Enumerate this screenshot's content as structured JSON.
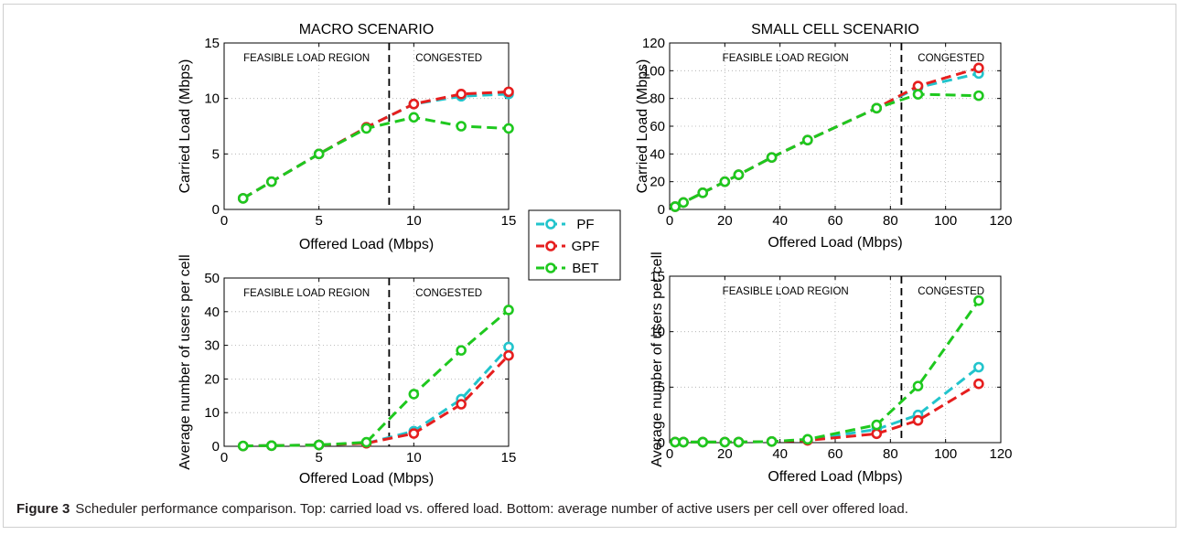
{
  "colors": {
    "pf": "#22c4cc",
    "gpf": "#e61e1e",
    "bet": "#1ec81e",
    "axis": "#000000",
    "grid": "#aaaaaa"
  },
  "legend": {
    "placement": "center",
    "entries": [
      "PF",
      "GPF",
      "BET"
    ]
  },
  "caption": {
    "label": "Figure 3",
    "text": "Scheduler performance comparison. Top: carried load vs. offered load. Bottom: average number of active users per cell over offered load."
  },
  "chart_data": [
    {
      "type": "line",
      "title": "MACRO SCENARIO",
      "xlabel": "Offered Load (Mbps)",
      "ylabel": "Carried Load (Mbps)",
      "xlim": [
        0,
        15
      ],
      "ylim": [
        0,
        15
      ],
      "xticks": [
        0,
        5,
        10,
        15
      ],
      "yticks": [
        0,
        5,
        10,
        15
      ],
      "grid": true,
      "threshold": 8.7,
      "region_labels": [
        "FEASIBLE LOAD REGION",
        "CONGESTED"
      ],
      "series": [
        {
          "name": "PF",
          "x": [
            1,
            2.5,
            5,
            7.5,
            10,
            12.5,
            15
          ],
          "y": [
            1.0,
            2.5,
            5.0,
            7.4,
            9.5,
            10.2,
            10.4
          ]
        },
        {
          "name": "GPF",
          "x": [
            1,
            2.5,
            5,
            7.5,
            10,
            12.5,
            15
          ],
          "y": [
            1.0,
            2.5,
            5.0,
            7.4,
            9.5,
            10.4,
            10.6
          ]
        },
        {
          "name": "BET",
          "x": [
            1,
            2.5,
            5,
            7.5,
            10,
            12.5,
            15
          ],
          "y": [
            1.0,
            2.5,
            5.0,
            7.3,
            8.3,
            7.5,
            7.3
          ]
        }
      ]
    },
    {
      "type": "line",
      "title": "SMALL CELL SCENARIO",
      "xlabel": "Offered Load (Mbps)",
      "ylabel": "Carried Load (Mbps)",
      "xlim": [
        0,
        120
      ],
      "ylim": [
        0,
        120
      ],
      "xticks": [
        0,
        20,
        40,
        60,
        80,
        100,
        120
      ],
      "yticks": [
        0,
        20,
        40,
        60,
        80,
        100,
        120
      ],
      "grid": true,
      "threshold": 84,
      "region_labels": [
        "FEASIBLE LOAD REGION",
        "CONGESTED"
      ],
      "series": [
        {
          "name": "PF",
          "x": [
            2,
            5,
            12,
            20,
            25,
            37,
            50,
            75,
            90,
            112
          ],
          "y": [
            2,
            5,
            12,
            20,
            25,
            37.5,
            50,
            73,
            88,
            98
          ]
        },
        {
          "name": "GPF",
          "x": [
            2,
            5,
            12,
            20,
            25,
            37,
            50,
            75,
            90,
            112
          ],
          "y": [
            2,
            5,
            12,
            20,
            25,
            37.5,
            50,
            73,
            89,
            102
          ]
        },
        {
          "name": "BET",
          "x": [
            2,
            5,
            12,
            20,
            25,
            37,
            50,
            75,
            90,
            112
          ],
          "y": [
            2,
            5,
            12,
            20,
            25,
            37.5,
            50,
            73,
            83,
            82
          ]
        }
      ]
    },
    {
      "type": "line",
      "title": "",
      "xlabel": "Offered Load (Mbps)",
      "ylabel": "Average number of users per cell",
      "xlim": [
        0,
        15
      ],
      "ylim": [
        0,
        50
      ],
      "xticks": [
        0,
        5,
        10,
        15
      ],
      "yticks": [
        0,
        10,
        20,
        30,
        40,
        50
      ],
      "grid": true,
      "threshold": 8.7,
      "region_labels": [
        "FEASIBLE LOAD REGION",
        "CONGESTED"
      ],
      "series": [
        {
          "name": "PF",
          "x": [
            1,
            2.5,
            5,
            7.5,
            10,
            12.5,
            15
          ],
          "y": [
            0.1,
            0.2,
            0.4,
            0.9,
            4.5,
            14,
            29.5
          ]
        },
        {
          "name": "GPF",
          "x": [
            1,
            2.5,
            5,
            7.5,
            10,
            12.5,
            15
          ],
          "y": [
            0.1,
            0.2,
            0.4,
            0.9,
            3.8,
            12.5,
            27
          ]
        },
        {
          "name": "BET",
          "x": [
            1,
            2.5,
            5,
            7.5,
            10,
            12.5,
            15
          ],
          "y": [
            0.1,
            0.2,
            0.4,
            1.2,
            15.5,
            28.5,
            40.5
          ]
        }
      ]
    },
    {
      "type": "line",
      "title": "",
      "xlabel": "Offered Load (Mbps)",
      "ylabel": "Average number of users per cell",
      "xlim": [
        0,
        120
      ],
      "ylim": [
        0,
        15
      ],
      "xticks": [
        0,
        20,
        40,
        60,
        80,
        100,
        120
      ],
      "yticks": [
        0,
        5,
        10,
        15
      ],
      "grid": true,
      "threshold": 84,
      "region_labels": [
        "FEASIBLE LOAD REGION",
        "CONGESTED"
      ],
      "series": [
        {
          "name": "PF",
          "x": [
            2,
            5,
            12,
            20,
            25,
            37,
            50,
            75,
            90,
            112
          ],
          "y": [
            0.05,
            0.05,
            0.05,
            0.05,
            0.05,
            0.1,
            0.25,
            1.2,
            2.5,
            6.8
          ]
        },
        {
          "name": "GPF",
          "x": [
            2,
            5,
            12,
            20,
            25,
            37,
            50,
            75,
            90,
            112
          ],
          "y": [
            0.05,
            0.05,
            0.05,
            0.05,
            0.05,
            0.1,
            0.2,
            0.8,
            2.0,
            5.3
          ]
        },
        {
          "name": "BET",
          "x": [
            2,
            5,
            12,
            20,
            25,
            37,
            50,
            75,
            90,
            112
          ],
          "y": [
            0.05,
            0.05,
            0.05,
            0.05,
            0.05,
            0.1,
            0.3,
            1.6,
            5.1,
            12.8
          ]
        }
      ]
    }
  ]
}
